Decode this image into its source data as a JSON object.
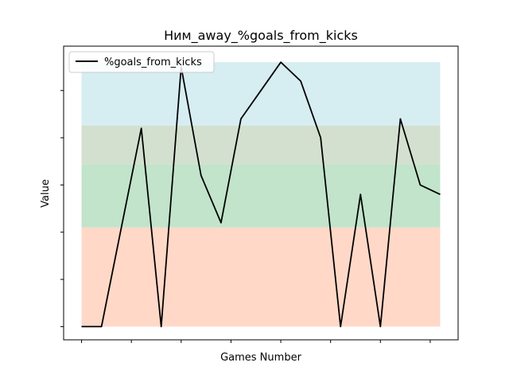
{
  "chart_data": {
    "type": "line",
    "title": "Ним_away_%goals_from_kicks",
    "xlabel": "Games Number",
    "ylabel": "Value",
    "x": [
      0,
      1,
      2,
      3,
      4,
      5,
      6,
      7,
      8,
      9,
      10,
      11,
      12,
      13,
      14,
      15,
      16,
      17,
      18
    ],
    "xlim": [
      -0.9,
      18.9
    ],
    "ylim": [
      -1.4,
      29.7
    ],
    "x_ticks": [
      0,
      2.5,
      5,
      7.5,
      10,
      12.5,
      15,
      17.5
    ],
    "y_ticks": [
      0,
      5,
      10,
      15,
      20,
      25
    ],
    "tick_labels_visible": false,
    "bands": [
      {
        "from": 0,
        "to": 10.5,
        "color": "#ffd8c8"
      },
      {
        "from": 10.5,
        "to": 17.2,
        "color": "#c1e4cb"
      },
      {
        "from": 17.2,
        "to": 21.3,
        "color": "#d3e0cf"
      },
      {
        "from": 21.3,
        "to": 28.0,
        "color": "#d6edf2"
      }
    ],
    "series": [
      {
        "name": "%goals_from_kicks",
        "color": "#000000",
        "values": [
          0,
          0,
          10.5,
          21.0,
          0,
          27.5,
          16.0,
          11.0,
          22.0,
          25.0,
          28.0,
          26.0,
          20.0,
          0,
          14.0,
          0,
          22.0,
          15.0,
          14.0
        ]
      }
    ],
    "legend": "top-left",
    "grid": false
  }
}
